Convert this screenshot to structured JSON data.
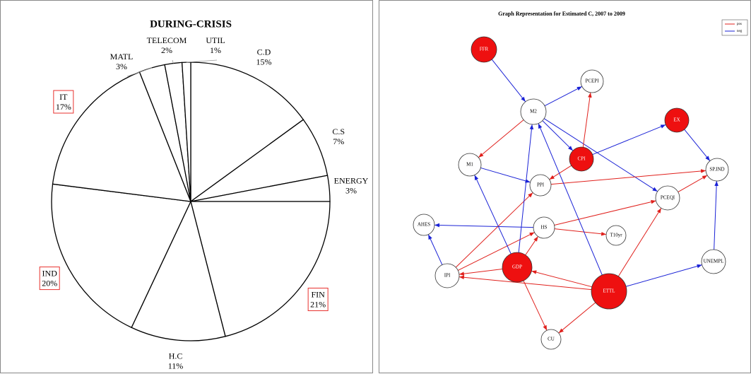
{
  "chart_data": {
    "type": "pie",
    "title": "DURING-CRISIS",
    "categories": [
      "C.D",
      "C.S",
      "ENERGY",
      "FIN",
      "H.C",
      "IND",
      "IT",
      "MATL",
      "TELECOM",
      "UTIL"
    ],
    "values": [
      15,
      7,
      3,
      21,
      11,
      20,
      17,
      3,
      2,
      1
    ],
    "value_labels": [
      "15%",
      "7%",
      "3%",
      "21%",
      "11%",
      "20%",
      "17%",
      "3%",
      "2%",
      "1%"
    ],
    "highlighted": [
      false,
      false,
      false,
      true,
      false,
      true,
      true,
      false,
      false,
      false
    ],
    "highlight_color": "#e8322f",
    "color": "#ffffff"
  },
  "graph": {
    "title": "Graph Representation for Estimated C, 2007 to 2009",
    "legend": [
      {
        "label": "pos",
        "color": "#e0201c"
      },
      {
        "label": "neg",
        "color": "#1a22d6"
      }
    ],
    "nodes": [
      {
        "label": "FFR",
        "fill": "#ee1010"
      },
      {
        "label": "M2",
        "fill": "#ffffff"
      },
      {
        "label": "PCEPI",
        "fill": "#ffffff"
      },
      {
        "label": "EX",
        "fill": "#ee1010"
      },
      {
        "label": "CPI",
        "fill": "#ee1010"
      },
      {
        "label": "M1",
        "fill": "#ffffff"
      },
      {
        "label": "PPI",
        "fill": "#ffffff"
      },
      {
        "label": "SP.IND",
        "fill": "#ffffff"
      },
      {
        "label": "PCEQI",
        "fill": "#ffffff"
      },
      {
        "label": "AHES",
        "fill": "#ffffff"
      },
      {
        "label": "HS",
        "fill": "#ffffff"
      },
      {
        "label": "T10yr",
        "fill": "#ffffff"
      },
      {
        "label": "UNEMPL",
        "fill": "#ffffff"
      },
      {
        "label": "IPI",
        "fill": "#ffffff"
      },
      {
        "label": "GDP",
        "fill": "#ee1010"
      },
      {
        "label": "ETTL",
        "fill": "#ee1010"
      },
      {
        "label": "CU",
        "fill": "#ffffff"
      }
    ],
    "edges": [
      {
        "from": 0,
        "to": 1,
        "kind": 1
      },
      {
        "from": 1,
        "to": 2,
        "kind": 1
      },
      {
        "from": 1,
        "to": 5,
        "kind": 0
      },
      {
        "from": 1,
        "to": 4,
        "kind": 1
      },
      {
        "from": 1,
        "to": 8,
        "kind": 1
      },
      {
        "from": 4,
        "to": 2,
        "kind": 0
      },
      {
        "from": 4,
        "to": 3,
        "kind": 1
      },
      {
        "from": 4,
        "to": 6,
        "kind": 0
      },
      {
        "from": 3,
        "to": 7,
        "kind": 1
      },
      {
        "from": 5,
        "to": 6,
        "kind": 1
      },
      {
        "from": 6,
        "to": 7,
        "kind": 0
      },
      {
        "from": 8,
        "to": 7,
        "kind": 0
      },
      {
        "from": 10,
        "to": 9,
        "kind": 1
      },
      {
        "from": 10,
        "to": 11,
        "kind": 0
      },
      {
        "from": 10,
        "to": 8,
        "kind": 0
      },
      {
        "from": 13,
        "to": 9,
        "kind": 1
      },
      {
        "from": 13,
        "to": 6,
        "kind": 0
      },
      {
        "from": 13,
        "to": 10,
        "kind": 0
      },
      {
        "from": 14,
        "to": 1,
        "kind": 1
      },
      {
        "from": 14,
        "to": 5,
        "kind": 1
      },
      {
        "from": 14,
        "to": 10,
        "kind": 0
      },
      {
        "from": 14,
        "to": 13,
        "kind": 0
      },
      {
        "from": 14,
        "to": 16,
        "kind": 0
      },
      {
        "from": 15,
        "to": 1,
        "kind": 1
      },
      {
        "from": 15,
        "to": 14,
        "kind": 0
      },
      {
        "from": 15,
        "to": 13,
        "kind": 0
      },
      {
        "from": 15,
        "to": 16,
        "kind": 0
      },
      {
        "from": 15,
        "to": 8,
        "kind": 0
      },
      {
        "from": 15,
        "to": 12,
        "kind": 1
      },
      {
        "from": 12,
        "to": 7,
        "kind": 1
      }
    ]
  }
}
